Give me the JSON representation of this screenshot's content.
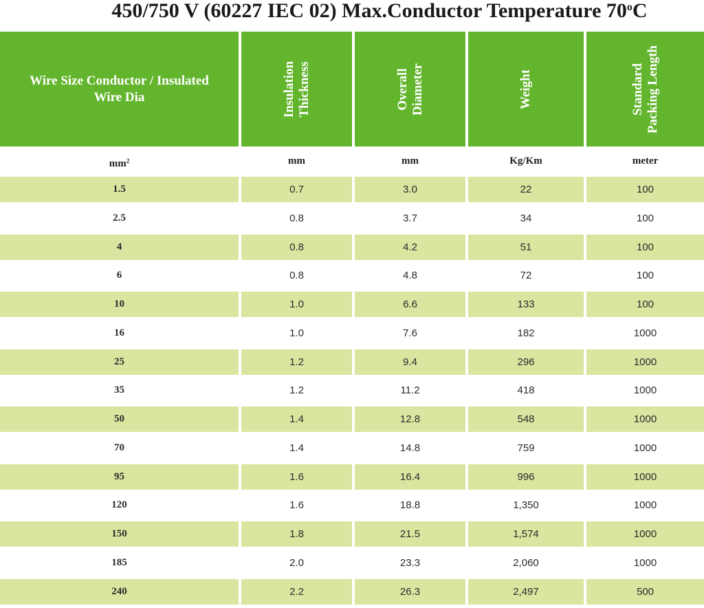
{
  "title": {
    "main": "450/750 V (60227 IEC 02) Max.Conductor Temperature 70",
    "degree_sup": "o",
    "unit": "C"
  },
  "table": {
    "headers": [
      "Wire Size  Conductor / Insulated\nWire Dia",
      "Insulation\nThickness",
      "Overall\nDiameter",
      "Weight",
      "Standard\nPacking Length"
    ],
    "units": {
      "size_base": "mm",
      "size_sup": "2",
      "thickness": "mm",
      "diameter": "mm",
      "weight": "Kg/Km",
      "length": "meter"
    },
    "rows": [
      [
        "1.5",
        "0.7",
        "3.0",
        "22",
        "100"
      ],
      [
        "2.5",
        "0.8",
        "3.7",
        "34",
        "100"
      ],
      [
        "4",
        "0.8",
        "4.2",
        "51",
        "100"
      ],
      [
        "6",
        "0.8",
        "4.8",
        "72",
        "100"
      ],
      [
        "10",
        "1.0",
        "6.6",
        "133",
        "100"
      ],
      [
        "16",
        "1.0",
        "7.6",
        "182",
        "1000"
      ],
      [
        "25",
        "1.2",
        "9.4",
        "296",
        "1000"
      ],
      [
        "35",
        "1.2",
        "11.2",
        "418",
        "1000"
      ],
      [
        "50",
        "1.4",
        "12.8",
        "548",
        "1000"
      ],
      [
        "70",
        "1.4",
        "14.8",
        "759",
        "1000"
      ],
      [
        "95",
        "1.6",
        "16.4",
        "996",
        "1000"
      ],
      [
        "120",
        "1.6",
        "18.8",
        "1,350",
        "1000"
      ],
      [
        "150",
        "1.8",
        "21.5",
        "1,574",
        "1000"
      ],
      [
        "185",
        "2.0",
        "23.3",
        "2,060",
        "1000"
      ],
      [
        "240",
        "2.2",
        "26.3",
        "2,497",
        "500"
      ]
    ]
  },
  "colors": {
    "header_green": "#63b52e",
    "row_shade": "#d8e6a0"
  }
}
